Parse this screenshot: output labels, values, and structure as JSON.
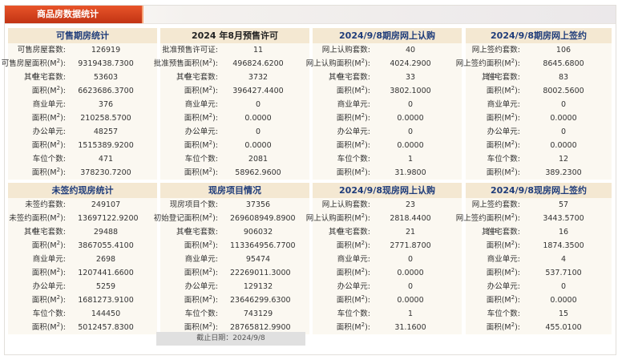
{
  "title": "商品房数据统计",
  "unit_sup": "2",
  "panels": [
    {
      "heading": "可售期房统计",
      "rows": [
        {
          "label": "可售房屋套数:",
          "value": "126919"
        },
        {
          "label": "可售房屋面积(M",
          "sup": true,
          "value": "9319438.7300"
        },
        {
          "qz": "其中",
          "label": "住宅套数:",
          "value": "53603"
        },
        {
          "label": "面积(M",
          "sup": true,
          "value": "6623686.3700"
        },
        {
          "label": "商业单元:",
          "value": "376"
        },
        {
          "label": "面积(M",
          "sup": true,
          "value": "210258.5700"
        },
        {
          "label": "办公单元:",
          "value": "48257"
        },
        {
          "label": "面积(M",
          "sup": true,
          "value": "1515389.9200"
        },
        {
          "label": "车位个数:",
          "value": "471"
        },
        {
          "label": "面积(M",
          "sup": true,
          "value": "378230.7200"
        }
      ]
    },
    {
      "heading": "2024 年8月预售许可",
      "rows": [
        {
          "label": "批准预售许可证:",
          "value": "11"
        },
        {
          "label": "批准预售面积(M",
          "sup": true,
          "value": "496824.6200"
        },
        {
          "qz": "其中",
          "label": "住宅套数:",
          "value": "3732"
        },
        {
          "label": "面积(M",
          "sup": true,
          "value": "396427.4400"
        },
        {
          "label": "商业单元:",
          "value": "0"
        },
        {
          "label": "面积(M",
          "sup": true,
          "value": "0.0000"
        },
        {
          "label": "办公单元:",
          "value": "0"
        },
        {
          "label": "面积(M",
          "sup": true,
          "value": "0.0000"
        },
        {
          "label": "车位个数:",
          "value": "2081"
        },
        {
          "label": "面积(M",
          "sup": true,
          "value": "58962.9600"
        }
      ]
    },
    {
      "heading": "2024/9/8期房网上认购",
      "rows": [
        {
          "label": "网上认购套数:",
          "value": "40"
        },
        {
          "label": "网上认购面积(M",
          "sup": true,
          "value": "4024.2900"
        },
        {
          "qz": "其中",
          "label": "住宅套数:",
          "value": "33"
        },
        {
          "label": "面积(M",
          "sup": true,
          "value": "3802.1000"
        },
        {
          "label": "商业单元:",
          "value": "0"
        },
        {
          "label": "面积(M",
          "sup": true,
          "value": "0.0000"
        },
        {
          "label": "办公单元:",
          "value": "0"
        },
        {
          "label": "面积(M",
          "sup": true,
          "value": "0.0000"
        },
        {
          "label": "车位个数:",
          "value": "1"
        },
        {
          "label": "面积(M",
          "sup": true,
          "value": "31.9800"
        }
      ]
    },
    {
      "heading": "2024/9/8期房网上签约",
      "rows": [
        {
          "label": "网上签约套数:",
          "value": "106"
        },
        {
          "label": "网上签约面积(M",
          "sup": true,
          "value": "8645.6800"
        },
        {
          "qz": "其中",
          "label": "住宅套数:",
          "value": "83"
        },
        {
          "label": "面积(M",
          "sup": true,
          "value": "8002.5600"
        },
        {
          "label": "商业单元:",
          "value": "0"
        },
        {
          "label": "面积(M",
          "sup": true,
          "value": "0.0000"
        },
        {
          "label": "办公单元:",
          "value": "0"
        },
        {
          "label": "面积(M",
          "sup": true,
          "value": "0.0000"
        },
        {
          "label": "车位个数:",
          "value": "12"
        },
        {
          "label": "面积(M",
          "sup": true,
          "value": "389.2300"
        }
      ]
    },
    {
      "heading": "未签约现房统计",
      "rows": [
        {
          "label": "未签约套数:",
          "value": "249107"
        },
        {
          "label": "未签约面积(M",
          "sup": true,
          "value": "13697122.9200"
        },
        {
          "qz": "其中",
          "label": "住宅套数:",
          "value": "29488"
        },
        {
          "label": "面积(M",
          "sup": true,
          "value": "3867055.4100"
        },
        {
          "label": "商业单元:",
          "value": "2698"
        },
        {
          "label": "面积(M",
          "sup": true,
          "value": "1207441.6600"
        },
        {
          "label": "办公单元:",
          "value": "5259"
        },
        {
          "label": "面积(M",
          "sup": true,
          "value": "1681273.9100"
        },
        {
          "label": "车位个数:",
          "value": "144450"
        },
        {
          "label": "面积(M",
          "sup": true,
          "value": "5012457.8300"
        }
      ]
    },
    {
      "heading": "现房项目情况",
      "rows": [
        {
          "label": "现房项目个数:",
          "value": "37356"
        },
        {
          "label": "初始登记面积(M",
          "sup": true,
          "value": "269608949.8900"
        },
        {
          "qz": "其中",
          "label": "住宅套数:",
          "value": "906032"
        },
        {
          "label": "面积(M",
          "sup": true,
          "value": "113364956.7700"
        },
        {
          "label": "商业单元:",
          "value": "95474"
        },
        {
          "label": "面积(M",
          "sup": true,
          "value": "22269011.3000"
        },
        {
          "label": "办公单元:",
          "value": "129132"
        },
        {
          "label": "面积(M",
          "sup": true,
          "value": "23646299.6300"
        },
        {
          "label": "车位个数:",
          "value": "743129"
        },
        {
          "label": "面积(M",
          "sup": true,
          "value": "28765812.9900"
        }
      ]
    },
    {
      "heading": "2024/9/8现房网上认购",
      "rows": [
        {
          "label": "网上认购套数:",
          "value": "23"
        },
        {
          "label": "网上认购面积(M",
          "sup": true,
          "value": "2818.4400"
        },
        {
          "qz": "其中",
          "label": "住宅套数:",
          "value": "21"
        },
        {
          "label": "面积(M",
          "sup": true,
          "value": "2771.8700"
        },
        {
          "label": "商业单元:",
          "value": "0"
        },
        {
          "label": "面积(M",
          "sup": true,
          "value": "0.0000"
        },
        {
          "label": "办公单元:",
          "value": "0"
        },
        {
          "label": "面积(M",
          "sup": true,
          "value": "0.0000"
        },
        {
          "label": "车位个数:",
          "value": "1"
        },
        {
          "label": "面积(M",
          "sup": true,
          "value": "31.1600"
        }
      ]
    },
    {
      "heading": "2024/9/8现房网上签约",
      "rows": [
        {
          "label": "网上签约套数:",
          "value": "57"
        },
        {
          "label": "网上签约面积(M",
          "sup": true,
          "value": "3443.5700"
        },
        {
          "qz": "其中",
          "label": "住宅套数:",
          "value": "16"
        },
        {
          "label": "面积(M",
          "sup": true,
          "value": "1874.3500"
        },
        {
          "label": "商业单元:",
          "value": "4"
        },
        {
          "label": "面积(M",
          "sup": true,
          "value": "537.7100"
        },
        {
          "label": "办公单元:",
          "value": "0"
        },
        {
          "label": "面积(M",
          "sup": true,
          "value": "0.0000"
        },
        {
          "label": "车位个数:",
          "value": "15"
        },
        {
          "label": "面积(M",
          "sup": true,
          "value": "455.0100"
        }
      ]
    }
  ],
  "deadline": "截止日期：2024/9/8"
}
